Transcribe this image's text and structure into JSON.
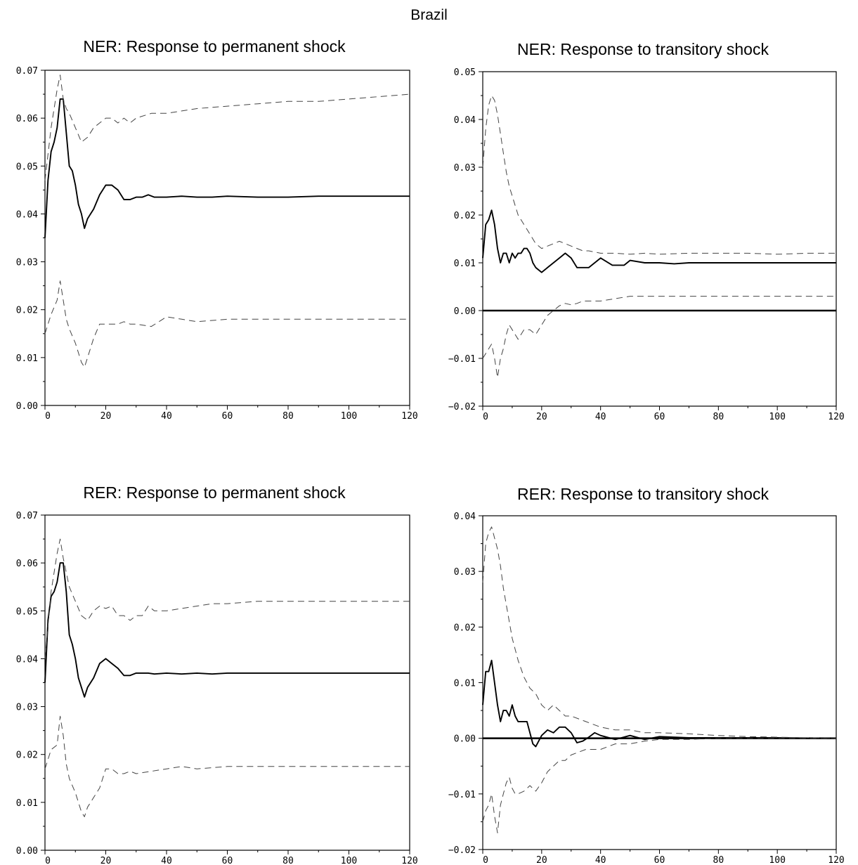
{
  "page_title": "Brazil",
  "chart_data": [
    {
      "type": "line",
      "title": "NER: Response to permanent shock",
      "xlabel": "",
      "ylabel": "",
      "xlim": [
        0,
        120
      ],
      "ylim": [
        0.0,
        0.07
      ],
      "x_ticks": [
        0,
        20,
        40,
        60,
        80,
        100,
        120
      ],
      "y_ticks": [
        0.0,
        0.01,
        0.02,
        0.03,
        0.04,
        0.05,
        0.06,
        0.07
      ],
      "zero_line": false,
      "series": [
        {
          "role": "estimate",
          "x": [
            0,
            1,
            2,
            3,
            4,
            5,
            6,
            7,
            8,
            9,
            10,
            11,
            12,
            13,
            14,
            15,
            16,
            18,
            20,
            22,
            24,
            26,
            28,
            30,
            32,
            34,
            36,
            40,
            45,
            50,
            55,
            60,
            70,
            80,
            90,
            100,
            110,
            120
          ],
          "values": [
            0.035,
            0.047,
            0.053,
            0.055,
            0.058,
            0.064,
            0.064,
            0.057,
            0.05,
            0.049,
            0.046,
            0.042,
            0.04,
            0.037,
            0.039,
            0.04,
            0.041,
            0.044,
            0.046,
            0.046,
            0.045,
            0.043,
            0.043,
            0.0435,
            0.0435,
            0.044,
            0.0435,
            0.0435,
            0.0437,
            0.0435,
            0.0435,
            0.0437,
            0.0435,
            0.0435,
            0.0437,
            0.0437,
            0.0437,
            0.0437
          ]
        },
        {
          "role": "upper-band",
          "x": [
            0,
            2,
            4,
            5,
            6,
            7,
            8,
            10,
            12,
            14,
            16,
            18,
            20,
            22,
            24,
            26,
            28,
            30,
            35,
            40,
            45,
            50,
            60,
            70,
            80,
            90,
            100,
            110,
            120
          ],
          "values": [
            0.047,
            0.058,
            0.066,
            0.069,
            0.064,
            0.062,
            0.061,
            0.058,
            0.055,
            0.056,
            0.058,
            0.059,
            0.06,
            0.06,
            0.059,
            0.06,
            0.059,
            0.06,
            0.061,
            0.061,
            0.0615,
            0.062,
            0.0625,
            0.063,
            0.0635,
            0.0635,
            0.064,
            0.0645,
            0.065
          ]
        },
        {
          "role": "lower-band",
          "x": [
            0,
            2,
            4,
            5,
            6,
            7,
            8,
            10,
            12,
            13,
            14,
            16,
            18,
            20,
            22,
            24,
            26,
            28,
            30,
            35,
            40,
            45,
            50,
            60,
            70,
            80,
            90,
            100,
            110,
            120
          ],
          "values": [
            0.015,
            0.019,
            0.022,
            0.026,
            0.022,
            0.018,
            0.016,
            0.013,
            0.009,
            0.008,
            0.01,
            0.014,
            0.017,
            0.017,
            0.017,
            0.017,
            0.0175,
            0.017,
            0.017,
            0.0165,
            0.0185,
            0.018,
            0.0175,
            0.018,
            0.018,
            0.018,
            0.018,
            0.018,
            0.018,
            0.018
          ]
        }
      ]
    },
    {
      "type": "line",
      "title": "NER: Response to transitory shock",
      "xlabel": "",
      "ylabel": "",
      "xlim": [
        0,
        120
      ],
      "ylim": [
        -0.02,
        0.05
      ],
      "x_ticks": [
        0,
        20,
        40,
        60,
        80,
        100,
        120
      ],
      "y_ticks": [
        -0.02,
        -0.01,
        0.0,
        0.01,
        0.02,
        0.03,
        0.04,
        0.05
      ],
      "zero_line": true,
      "series": [
        {
          "role": "estimate",
          "x": [
            0,
            1,
            2,
            3,
            4,
            5,
            6,
            7,
            8,
            9,
            10,
            11,
            12,
            13,
            14,
            15,
            16,
            17,
            18,
            20,
            22,
            24,
            26,
            28,
            30,
            32,
            34,
            36,
            38,
            40,
            44,
            48,
            50,
            55,
            60,
            65,
            70,
            80,
            90,
            100,
            110,
            120
          ],
          "values": [
            0.011,
            0.018,
            0.019,
            0.021,
            0.018,
            0.013,
            0.01,
            0.012,
            0.012,
            0.01,
            0.012,
            0.011,
            0.012,
            0.012,
            0.013,
            0.013,
            0.012,
            0.01,
            0.009,
            0.008,
            0.009,
            0.01,
            0.011,
            0.012,
            0.011,
            0.009,
            0.009,
            0.009,
            0.01,
            0.011,
            0.0095,
            0.0095,
            0.0105,
            0.01,
            0.01,
            0.0098,
            0.01,
            0.01,
            0.01,
            0.01,
            0.01,
            0.01
          ]
        },
        {
          "role": "upper-band",
          "x": [
            0,
            1,
            2,
            3,
            4,
            5,
            6,
            7,
            8,
            9,
            10,
            12,
            14,
            16,
            18,
            20,
            22,
            24,
            26,
            28,
            30,
            32,
            34,
            36,
            40,
            45,
            50,
            55,
            60,
            70,
            80,
            90,
            100,
            110,
            120
          ],
          "values": [
            0.03,
            0.038,
            0.043,
            0.045,
            0.044,
            0.041,
            0.037,
            0.033,
            0.029,
            0.026,
            0.024,
            0.02,
            0.018,
            0.016,
            0.014,
            0.013,
            0.0135,
            0.014,
            0.0145,
            0.014,
            0.0135,
            0.013,
            0.0125,
            0.0125,
            0.012,
            0.012,
            0.0118,
            0.012,
            0.0118,
            0.012,
            0.012,
            0.012,
            0.0118,
            0.012,
            0.012
          ]
        },
        {
          "role": "lower-band",
          "x": [
            0,
            1,
            2,
            3,
            4,
            5,
            6,
            7,
            8,
            9,
            10,
            11,
            12,
            14,
            16,
            18,
            20,
            22,
            24,
            26,
            28,
            30,
            32,
            34,
            36,
            40,
            45,
            50,
            55,
            60,
            70,
            80,
            90,
            100,
            110,
            120
          ],
          "values": [
            -0.01,
            -0.009,
            -0.008,
            -0.007,
            -0.01,
            -0.014,
            -0.01,
            -0.008,
            -0.005,
            -0.003,
            -0.004,
            -0.005,
            -0.006,
            -0.004,
            -0.004,
            -0.005,
            -0.003,
            -0.001,
            0.0,
            0.001,
            0.0015,
            0.0012,
            0.0015,
            0.002,
            0.002,
            0.002,
            0.0025,
            0.003,
            0.003,
            0.003,
            0.003,
            0.003,
            0.003,
            0.003,
            0.003,
            0.003
          ]
        }
      ]
    },
    {
      "type": "line",
      "title": "RER: Response to permanent shock",
      "xlabel": "",
      "ylabel": "",
      "xlim": [
        0,
        120
      ],
      "ylim": [
        0.0,
        0.07
      ],
      "x_ticks": [
        0,
        20,
        40,
        60,
        80,
        100,
        120
      ],
      "y_ticks": [
        0.0,
        0.01,
        0.02,
        0.03,
        0.04,
        0.05,
        0.06,
        0.07
      ],
      "zero_line": false,
      "series": [
        {
          "role": "estimate",
          "x": [
            0,
            1,
            2,
            3,
            4,
            5,
            6,
            7,
            8,
            9,
            10,
            11,
            12,
            13,
            14,
            15,
            16,
            18,
            20,
            22,
            24,
            26,
            28,
            30,
            32,
            34,
            36,
            40,
            45,
            50,
            55,
            60,
            70,
            80,
            90,
            100,
            110,
            120
          ],
          "values": [
            0.035,
            0.048,
            0.053,
            0.054,
            0.056,
            0.06,
            0.06,
            0.054,
            0.045,
            0.043,
            0.04,
            0.036,
            0.034,
            0.032,
            0.034,
            0.035,
            0.036,
            0.039,
            0.04,
            0.039,
            0.038,
            0.0365,
            0.0365,
            0.037,
            0.037,
            0.037,
            0.0368,
            0.037,
            0.0368,
            0.037,
            0.0368,
            0.037,
            0.037,
            0.037,
            0.037,
            0.037,
            0.037,
            0.037
          ]
        },
        {
          "role": "upper-band",
          "x": [
            0,
            2,
            4,
            5,
            6,
            7,
            8,
            10,
            12,
            14,
            16,
            18,
            20,
            22,
            24,
            26,
            28,
            30,
            32,
            34,
            36,
            40,
            45,
            50,
            55,
            60,
            70,
            80,
            90,
            100,
            110,
            120
          ],
          "values": [
            0.04,
            0.054,
            0.062,
            0.065,
            0.061,
            0.058,
            0.055,
            0.052,
            0.049,
            0.048,
            0.05,
            0.051,
            0.0505,
            0.051,
            0.049,
            0.049,
            0.048,
            0.049,
            0.049,
            0.051,
            0.05,
            0.05,
            0.0505,
            0.051,
            0.0515,
            0.0515,
            0.052,
            0.052,
            0.052,
            0.052,
            0.052,
            0.052
          ]
        },
        {
          "role": "lower-band",
          "x": [
            0,
            2,
            4,
            5,
            6,
            7,
            8,
            10,
            12,
            13,
            14,
            16,
            18,
            20,
            22,
            24,
            26,
            28,
            30,
            35,
            40,
            45,
            50,
            60,
            70,
            80,
            90,
            100,
            110,
            120
          ],
          "values": [
            0.017,
            0.021,
            0.022,
            0.028,
            0.024,
            0.018,
            0.015,
            0.012,
            0.008,
            0.007,
            0.009,
            0.011,
            0.013,
            0.017,
            0.017,
            0.016,
            0.016,
            0.0165,
            0.016,
            0.0165,
            0.017,
            0.0175,
            0.017,
            0.0175,
            0.0175,
            0.0175,
            0.0175,
            0.0175,
            0.0175,
            0.0175
          ]
        }
      ]
    },
    {
      "type": "line",
      "title": "RER: Response to transitory shock",
      "xlabel": "",
      "ylabel": "",
      "xlim": [
        0,
        120
      ],
      "ylim": [
        -0.02,
        0.04
      ],
      "x_ticks": [
        0,
        20,
        40,
        60,
        80,
        100,
        120
      ],
      "y_ticks": [
        -0.02,
        -0.01,
        0.0,
        0.01,
        0.02,
        0.03,
        0.04
      ],
      "zero_line": true,
      "series": [
        {
          "role": "estimate",
          "x": [
            0,
            1,
            2,
            3,
            4,
            5,
            6,
            7,
            8,
            9,
            10,
            11,
            12,
            13,
            14,
            15,
            16,
            17,
            18,
            20,
            22,
            24,
            26,
            28,
            30,
            32,
            34,
            36,
            38,
            40,
            45,
            50,
            55,
            60,
            70,
            80,
            90,
            100,
            110,
            120
          ],
          "values": [
            0.006,
            0.012,
            0.012,
            0.014,
            0.01,
            0.006,
            0.003,
            0.005,
            0.005,
            0.004,
            0.006,
            0.004,
            0.003,
            0.003,
            0.003,
            0.003,
            0.001,
            -0.001,
            -0.0015,
            0.0005,
            0.0015,
            0.001,
            0.002,
            0.002,
            0.001,
            -0.0008,
            -0.0005,
            0.0002,
            0.001,
            0.0005,
            -0.0002,
            0.0005,
            -0.0002,
            0.0003,
            0.0001,
            0.0001,
            0.0001,
            0.0001,
            0.0,
            0.0
          ]
        },
        {
          "role": "upper-band",
          "x": [
            0,
            1,
            2,
            3,
            4,
            5,
            6,
            7,
            8,
            9,
            10,
            12,
            14,
            16,
            18,
            20,
            22,
            24,
            26,
            28,
            30,
            35,
            40,
            45,
            50,
            55,
            60,
            70,
            80,
            90,
            100,
            110,
            120
          ],
          "values": [
            0.028,
            0.035,
            0.037,
            0.038,
            0.036,
            0.034,
            0.031,
            0.027,
            0.024,
            0.021,
            0.018,
            0.014,
            0.011,
            0.009,
            0.008,
            0.006,
            0.005,
            0.006,
            0.005,
            0.004,
            0.004,
            0.003,
            0.002,
            0.0015,
            0.0015,
            0.001,
            0.001,
            0.0008,
            0.0005,
            0.0003,
            0.0002,
            0.0001,
            0.0
          ]
        },
        {
          "role": "lower-band",
          "x": [
            0,
            1,
            2,
            3,
            4,
            5,
            6,
            7,
            8,
            9,
            10,
            11,
            12,
            14,
            16,
            18,
            20,
            22,
            24,
            26,
            28,
            30,
            35,
            40,
            45,
            50,
            55,
            60,
            70,
            80,
            90,
            100,
            110,
            120
          ],
          "values": [
            -0.015,
            -0.013,
            -0.012,
            -0.01,
            -0.014,
            -0.017,
            -0.012,
            -0.01,
            -0.008,
            -0.007,
            -0.009,
            -0.01,
            -0.01,
            -0.0095,
            -0.0085,
            -0.0095,
            -0.008,
            -0.006,
            -0.005,
            -0.004,
            -0.004,
            -0.003,
            -0.002,
            -0.002,
            -0.001,
            -0.001,
            -0.0005,
            -0.0002,
            -0.0002,
            0.0,
            0.0,
            0.0,
            0.0,
            0.0
          ]
        }
      ]
    }
  ]
}
